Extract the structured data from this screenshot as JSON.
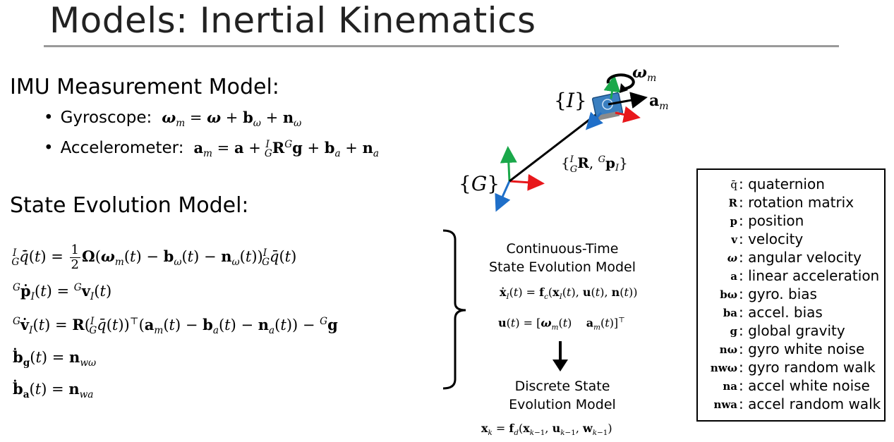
{
  "title": "Models: Inertial Kinematics",
  "imu": {
    "heading": "IMU Measurement Model:",
    "gyro_label": "Gyroscope:",
    "accel_label": "Accelerometer:"
  },
  "state": {
    "heading": "State Evolution Model:"
  },
  "continuous": {
    "line1": "Continuous-Time",
    "line2": "State Evolution Model"
  },
  "discrete": {
    "line1": "Discrete State",
    "line2": "Evolution Model"
  },
  "legend": [
    {
      "symbol": "q̄",
      "text": ": quaternion"
    },
    {
      "symbol": "R",
      "text": ": rotation matrix"
    },
    {
      "symbol": "p",
      "text": ": position"
    },
    {
      "symbol": "v",
      "text": ": velocity"
    },
    {
      "symbol": "ω",
      "text": ": angular velocity"
    },
    {
      "symbol": "a",
      "text": ": linear acceleration"
    },
    {
      "symbol": "bω",
      "text": ": gyro. bias"
    },
    {
      "symbol": "ba",
      "text": ": accel. bias"
    },
    {
      "symbol": "g",
      "text": ": global gravity"
    },
    {
      "symbol": "nω",
      "text": ": gyro white noise"
    },
    {
      "symbol": "nwω",
      "text": ": gyro random walk"
    },
    {
      "symbol": "na",
      "text": ": accel white noise"
    },
    {
      "symbol": "nwa",
      "text": ": accel random walk"
    }
  ],
  "colors": {
    "x_axis": "#e8171b",
    "y_axis": "#1aa84a",
    "z_axis": "#1f6fc9",
    "rule": "#9a9a9a"
  }
}
